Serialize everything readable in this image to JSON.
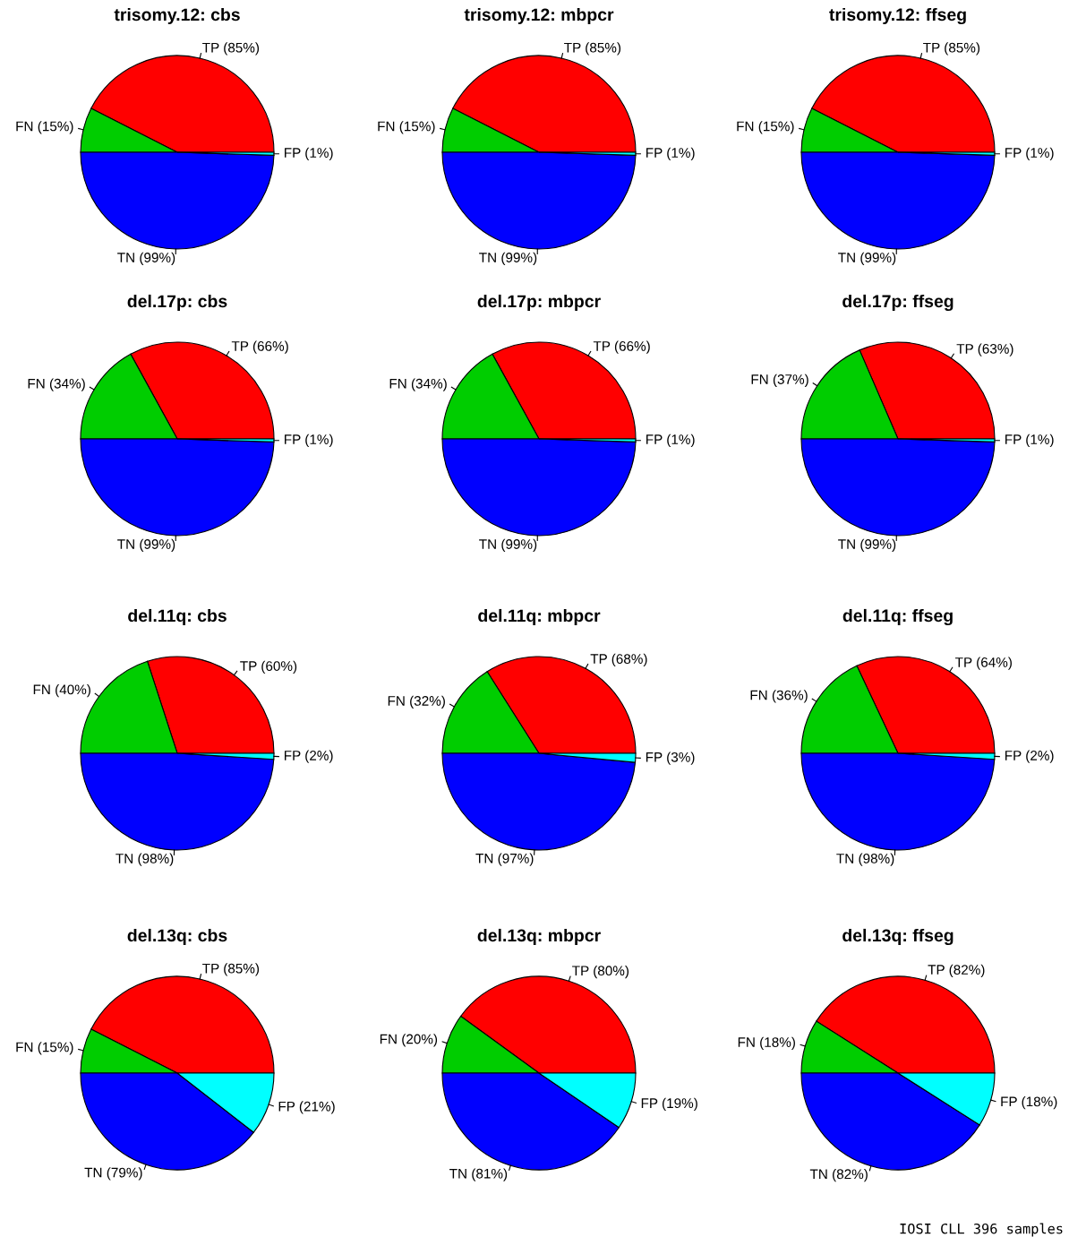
{
  "chart_data": [
    {
      "type": "pie",
      "title": "trisomy.12: cbs",
      "categories": [
        "TP (85%)",
        "FN (15%)",
        "TN (99%)",
        "FP (1%)"
      ],
      "values": [
        85,
        15,
        99,
        1
      ],
      "colors": [
        "#ff0000",
        "#00cd00",
        "#0000ff",
        "#00ffff"
      ]
    },
    {
      "type": "pie",
      "title": "trisomy.12: mbpcr",
      "categories": [
        "TP (85%)",
        "FN (15%)",
        "TN (99%)",
        "FP (1%)"
      ],
      "values": [
        85,
        15,
        99,
        1
      ],
      "colors": [
        "#ff0000",
        "#00cd00",
        "#0000ff",
        "#00ffff"
      ]
    },
    {
      "type": "pie",
      "title": "trisomy.12: ffseg",
      "categories": [
        "TP (85%)",
        "FN (15%)",
        "TN (99%)",
        "FP (1%)"
      ],
      "values": [
        85,
        15,
        99,
        1
      ],
      "colors": [
        "#ff0000",
        "#00cd00",
        "#0000ff",
        "#00ffff"
      ]
    },
    {
      "type": "pie",
      "title": "del.17p: cbs",
      "categories": [
        "TP (66%)",
        "FN (34%)",
        "TN (99%)",
        "FP (1%)"
      ],
      "values": [
        66,
        34,
        99,
        1
      ],
      "colors": [
        "#ff0000",
        "#00cd00",
        "#0000ff",
        "#00ffff"
      ]
    },
    {
      "type": "pie",
      "title": "del.17p: mbpcr",
      "categories": [
        "TP (66%)",
        "FN (34%)",
        "TN (99%)",
        "FP (1%)"
      ],
      "values": [
        66,
        34,
        99,
        1
      ],
      "colors": [
        "#ff0000",
        "#00cd00",
        "#0000ff",
        "#00ffff"
      ]
    },
    {
      "type": "pie",
      "title": "del.17p: ffseg",
      "categories": [
        "TP (63%)",
        "FN (37%)",
        "TN (99%)",
        "FP (1%)"
      ],
      "values": [
        63,
        37,
        99,
        1
      ],
      "colors": [
        "#ff0000",
        "#00cd00",
        "#0000ff",
        "#00ffff"
      ]
    },
    {
      "type": "pie",
      "title": "del.11q: cbs",
      "categories": [
        "TP (60%)",
        "FN (40%)",
        "TN (98%)",
        "FP (2%)"
      ],
      "values": [
        60,
        40,
        98,
        2
      ],
      "colors": [
        "#ff0000",
        "#00cd00",
        "#0000ff",
        "#00ffff"
      ]
    },
    {
      "type": "pie",
      "title": "del.11q: mbpcr",
      "categories": [
        "TP (68%)",
        "FN (32%)",
        "TN (97%)",
        "FP (3%)"
      ],
      "values": [
        68,
        32,
        97,
        3
      ],
      "colors": [
        "#ff0000",
        "#00cd00",
        "#0000ff",
        "#00ffff"
      ]
    },
    {
      "type": "pie",
      "title": "del.11q: ffseg",
      "categories": [
        "TP (64%)",
        "FN (36%)",
        "TN (98%)",
        "FP (2%)"
      ],
      "values": [
        64,
        36,
        98,
        2
      ],
      "colors": [
        "#ff0000",
        "#00cd00",
        "#0000ff",
        "#00ffff"
      ]
    },
    {
      "type": "pie",
      "title": "del.13q: cbs",
      "categories": [
        "TP (85%)",
        "FN (15%)",
        "TN (79%)",
        "FP (21%)"
      ],
      "values": [
        85,
        15,
        79,
        21
      ],
      "colors": [
        "#ff0000",
        "#00cd00",
        "#0000ff",
        "#00ffff"
      ]
    },
    {
      "type": "pie",
      "title": "del.13q: mbpcr",
      "categories": [
        "TP (80%)",
        "FN (20%)",
        "TN (81%)",
        "FP (19%)"
      ],
      "values": [
        80,
        20,
        81,
        19
      ],
      "colors": [
        "#ff0000",
        "#00cd00",
        "#0000ff",
        "#00ffff"
      ]
    },
    {
      "type": "pie",
      "title": "del.13q: ffseg",
      "categories": [
        "TP (82%)",
        "FN (18%)",
        "TN (82%)",
        "FP (18%)"
      ],
      "values": [
        82,
        18,
        82,
        18
      ],
      "colors": [
        "#ff0000",
        "#00cd00",
        "#0000ff",
        "#00ffff"
      ],
      "annotations": [
        "IOSI CLL 396 samples"
      ]
    }
  ]
}
